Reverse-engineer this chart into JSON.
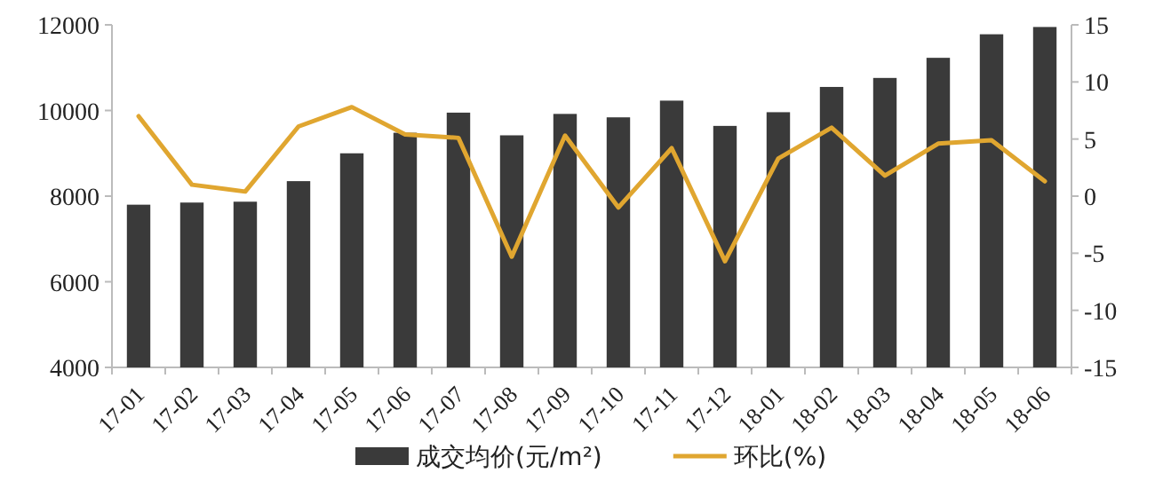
{
  "chart_data": {
    "type": "bar",
    "categories": [
      "17-01",
      "17-02",
      "17-03",
      "17-04",
      "17-05",
      "17-06",
      "17-07",
      "17-08",
      "17-09",
      "17-10",
      "17-11",
      "17-12",
      "18-01",
      "18-02",
      "18-03",
      "18-04",
      "18-05",
      "18-06"
    ],
    "series": [
      {
        "name": "成交均价(元/m²)",
        "color": "#3a3a3a",
        "values": [
          7800,
          7850,
          7870,
          8350,
          9000,
          9480,
          9950,
          9420,
          9920,
          9840,
          10230,
          9640,
          9960,
          10550,
          10760,
          11230,
          11780,
          11950
        ]
      },
      {
        "name": "环比(%)",
        "type": "line",
        "axis": "y2",
        "color": "#e0a630",
        "values": [
          7,
          1,
          0.4,
          6.1,
          7.8,
          5.4,
          5.1,
          -5.3,
          5.3,
          -1,
          4.2,
          -5.7,
          3.3,
          6,
          1.8,
          4.6,
          4.9,
          1.3
        ]
      }
    ],
    "ylim": [
      4000,
      12000
    ],
    "yticks": [
      4000,
      6000,
      8000,
      10000,
      12000
    ],
    "y2lim": [
      -15,
      15
    ],
    "y2ticks": [
      -15,
      -10,
      -5,
      0,
      5,
      10,
      15
    ],
    "legend": "bottom"
  }
}
